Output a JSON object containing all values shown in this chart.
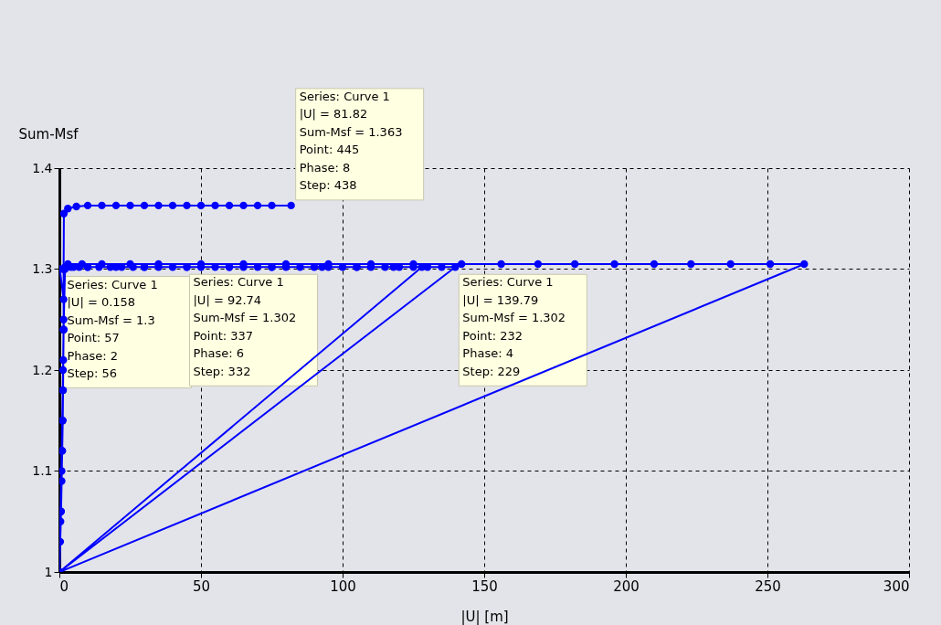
{
  "chart_data": {
    "type": "line",
    "xlabel": "|U| [m]",
    "ylabel": "Sum-Msf",
    "x": [
      0,
      0.3,
      0.6,
      0.8,
      1,
      1.2,
      1.3,
      1.4,
      1.5,
      1.5,
      0.158,
      2,
      4,
      7,
      10,
      14,
      18,
      22,
      26,
      30,
      35,
      40,
      45,
      50,
      55,
      60,
      65,
      70,
      75,
      80,
      85,
      90,
      95,
      100,
      105,
      110,
      115,
      120,
      125,
      130,
      135,
      139.79,
      0,
      0.4,
      0.8,
      1.1,
      1.3,
      1.5,
      1.5,
      3,
      8,
      15,
      25,
      35,
      50,
      65,
      80,
      95,
      110,
      125,
      142,
      156,
      169,
      182,
      196,
      210,
      223,
      237,
      251,
      263,
      0,
      0.5,
      1,
      1.3,
      1.5,
      2,
      5,
      10,
      20,
      30,
      45,
      60,
      75,
      92.74,
      105,
      118,
      128,
      0,
      0.4,
      0.8,
      1.2,
      1.5,
      1.5,
      1.6,
      3,
      6,
      10,
      15,
      20,
      25,
      30,
      35,
      40,
      45,
      50,
      55,
      60,
      65,
      70,
      75,
      81.82
    ],
    "series": [
      {
        "color": "#0000ff",
        "values": [
          1,
          1.03,
          1.06,
          1.09,
          1.12,
          1.15,
          1.18,
          1.21,
          1.24,
          1.27,
          1.3,
          1.302,
          1.302,
          1.302,
          1.302,
          1.302,
          1.302,
          1.302,
          1.302,
          1.302,
          1.302,
          1.302,
          1.302,
          1.302,
          1.302,
          1.302,
          1.302,
          1.302,
          1.302,
          1.302,
          1.302,
          1.302,
          1.302,
          1.302,
          1.302,
          1.302,
          1.302,
          1.302,
          1.302,
          1.302,
          1.302,
          1.302,
          1,
          1.05,
          1.1,
          1.15,
          1.2,
          1.25,
          1.3,
          1.305,
          1.305,
          1.305,
          1.305,
          1.305,
          1.305,
          1.305,
          1.305,
          1.305,
          1.305,
          1.305,
          1.305,
          1.305,
          1.305,
          1.305,
          1.305,
          1.305,
          1.305,
          1.305,
          1.305,
          1.305,
          1,
          1.06,
          1.12,
          1.18,
          1.24,
          1.3,
          1.302,
          1.302,
          1.302,
          1.302,
          1.302,
          1.302,
          1.302,
          1.302,
          1.302,
          1.302,
          1.302,
          1,
          1.06,
          1.12,
          1.18,
          1.24,
          1.3,
          1.355,
          1.36,
          1.362,
          1.363,
          1.363,
          1.363,
          1.363,
          1.363,
          1.363,
          1.363,
          1.363,
          1.363,
          1.363,
          1.363,
          1.363,
          1.363,
          1.363,
          1.363
        ]
      }
    ],
    "xlim": [
      0,
      300
    ],
    "xticks": [
      0,
      50,
      100,
      150,
      200,
      250,
      300
    ],
    "ylim": [
      1,
      1.4
    ],
    "yticks": [
      1,
      1.1,
      1.2,
      1.3,
      1.4
    ],
    "grid": true,
    "marker": "circle",
    "line_style": "solid",
    "legend": false,
    "annotations": [
      {
        "text": "Series: Curve 1\n|U| = 81.82\nSum-Msf = 1.363\nPoint: 445\nPhase: 8\nStep:  438",
        "x": 81.82,
        "y": 1.363
      },
      {
        "text": "Series: Curve 1\n|U| = 0.158\nSum-Msf = 1.3\nPoint: 57\nPhase: 2\nStep:  56",
        "x": 0.158,
        "y": 1.3
      },
      {
        "text": "Series: Curve 1\n|U| = 92.74\nSum-Msf = 1.302\nPoint: 337\nPhase: 6\nStep:  332",
        "x": 92.74,
        "y": 1.302
      },
      {
        "text": "Series: Curve 1\n|U| = 139.79\nSum-Msf = 1.302\nPoint: 232\nPhase: 4\nStep:  229",
        "x": 139.79,
        "y": 1.302
      }
    ]
  }
}
